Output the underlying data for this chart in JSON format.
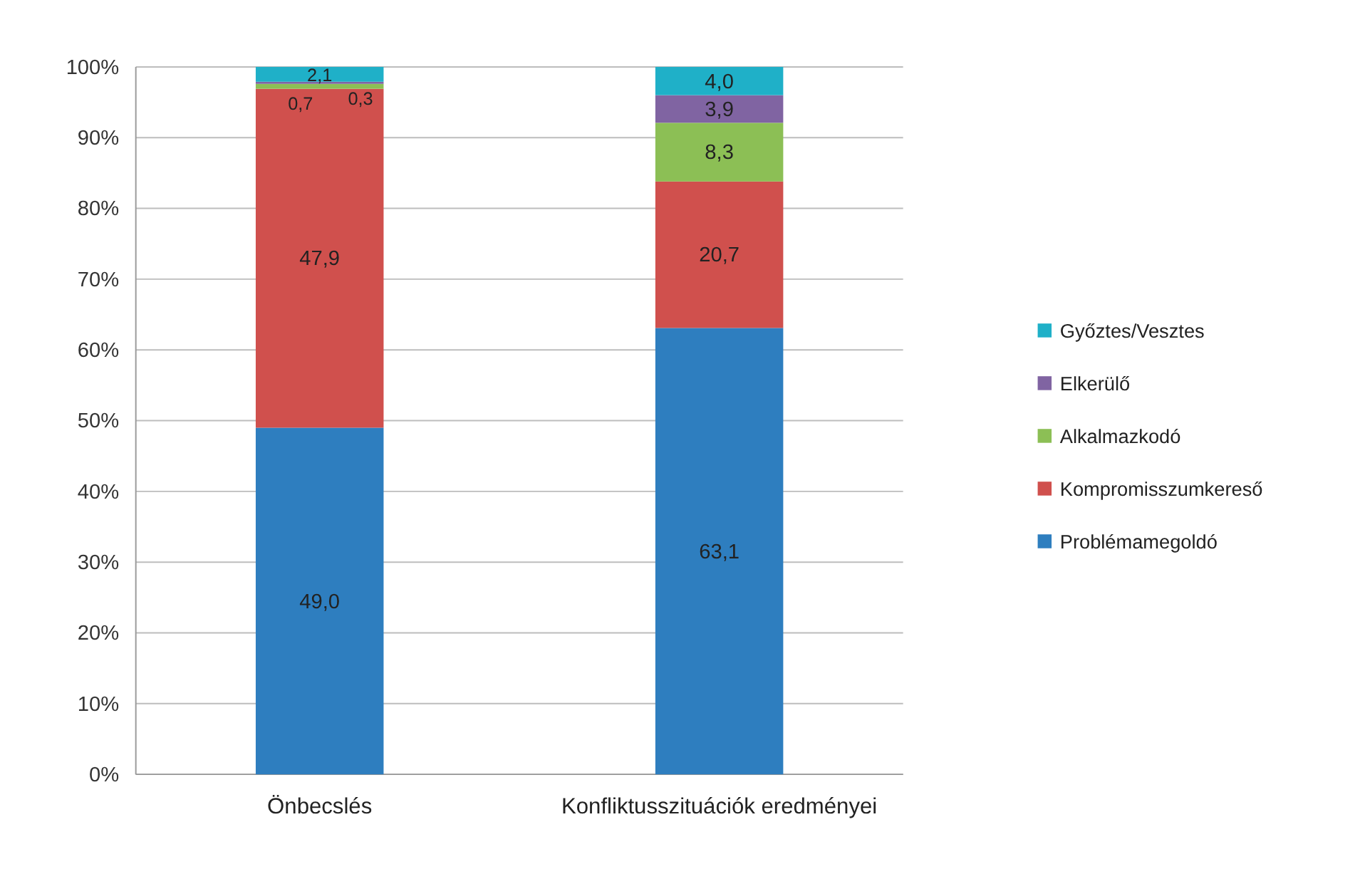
{
  "chart_data": {
    "type": "bar",
    "stacked": true,
    "categories": [
      "Önbecslés",
      "Konfliktusszituációk eredményei"
    ],
    "series": [
      {
        "name": "Problémamegoldó",
        "color": "#2e7ebf",
        "values": [
          49.0,
          63.1
        ],
        "value_labels": [
          "49,0",
          "63,1"
        ]
      },
      {
        "name": "Kompromisszumkereső",
        "color": "#d0504d",
        "values": [
          47.9,
          20.7
        ],
        "value_labels": [
          "47,9",
          "20,7"
        ]
      },
      {
        "name": "Alkalmazkodó",
        "color": "#8cbf55",
        "values": [
          0.7,
          8.3
        ],
        "value_labels": [
          "0,7",
          "8,3"
        ]
      },
      {
        "name": "Elkerülő",
        "color": "#8064a2",
        "values": [
          0.3,
          3.9
        ],
        "value_labels": [
          "0,3",
          "3,9"
        ]
      },
      {
        "name": "Győztes/Vesztes",
        "color": "#1fb0c8",
        "values": [
          2.1,
          4.0
        ],
        "value_labels": [
          "2,1",
          "4,0"
        ]
      }
    ],
    "ylim": [
      0,
      100
    ],
    "yticks": [
      {
        "value": 0,
        "label": "0%"
      },
      {
        "value": 10,
        "label": "10%"
      },
      {
        "value": 20,
        "label": "20%"
      },
      {
        "value": 30,
        "label": "30%"
      },
      {
        "value": 40,
        "label": "40%"
      },
      {
        "value": 50,
        "label": "50%"
      },
      {
        "value": 60,
        "label": "60%"
      },
      {
        "value": 70,
        "label": "70%"
      },
      {
        "value": 80,
        "label": "80%"
      },
      {
        "value": 90,
        "label": "90%"
      },
      {
        "value": 100,
        "label": "100%"
      }
    ],
    "grid": "y",
    "legend": "right"
  }
}
